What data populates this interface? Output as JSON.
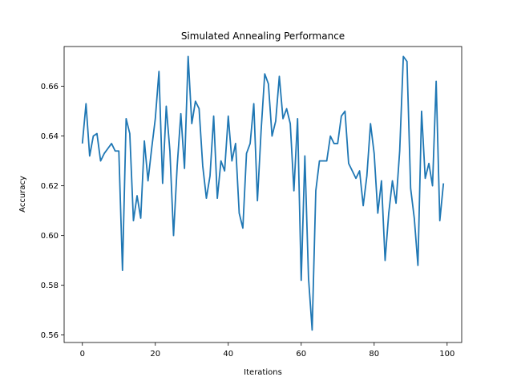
{
  "chart_data": {
    "type": "line",
    "title": "Simulated Annealing Performance",
    "xlabel": "Iterations",
    "ylabel": "Accuracy",
    "xlim": [
      -5,
      104
    ],
    "ylim": [
      0.557,
      0.676
    ],
    "xticks": [
      0,
      20,
      40,
      60,
      80,
      100
    ],
    "yticks": [
      0.56,
      0.58,
      0.6,
      0.62,
      0.64,
      0.66
    ],
    "grid": false,
    "legend": "none",
    "series": [
      {
        "color": "#1f77b4",
        "x": [
          0,
          1,
          2,
          3,
          4,
          5,
          6,
          7,
          8,
          9,
          10,
          11,
          12,
          13,
          14,
          15,
          16,
          17,
          18,
          19,
          20,
          21,
          22,
          23,
          24,
          25,
          26,
          27,
          28,
          29,
          30,
          31,
          32,
          33,
          34,
          35,
          36,
          37,
          38,
          39,
          40,
          41,
          42,
          43,
          44,
          45,
          46,
          47,
          48,
          49,
          50,
          51,
          52,
          53,
          54,
          55,
          56,
          57,
          58,
          59,
          60,
          61,
          62,
          63,
          64,
          65,
          66,
          67,
          68,
          69,
          70,
          71,
          72,
          73,
          74,
          75,
          76,
          77,
          78,
          79,
          80,
          81,
          82,
          83,
          84,
          85,
          86,
          87,
          88,
          89,
          90,
          91,
          92,
          93,
          94,
          95,
          96,
          97,
          98,
          99
        ],
        "values": [
          0.637,
          0.653,
          0.632,
          0.64,
          0.641,
          0.63,
          0.633,
          0.635,
          0.637,
          0.634,
          0.634,
          0.586,
          0.647,
          0.641,
          0.606,
          0.616,
          0.607,
          0.638,
          0.622,
          0.635,
          0.647,
          0.666,
          0.621,
          0.652,
          0.634,
          0.6,
          0.628,
          0.649,
          0.627,
          0.672,
          0.645,
          0.654,
          0.651,
          0.628,
          0.615,
          0.624,
          0.648,
          0.615,
          0.63,
          0.626,
          0.648,
          0.63,
          0.637,
          0.609,
          0.603,
          0.633,
          0.637,
          0.653,
          0.614,
          0.642,
          0.665,
          0.661,
          0.64,
          0.646,
          0.664,
          0.647,
          0.651,
          0.645,
          0.618,
          0.647,
          0.582,
          0.632,
          0.583,
          0.562,
          0.618,
          0.63,
          0.63,
          0.63,
          0.64,
          0.637,
          0.637,
          0.648,
          0.65,
          0.629,
          0.626,
          0.623,
          0.626,
          0.612,
          0.624,
          0.645,
          0.633,
          0.609,
          0.622,
          0.59,
          0.609,
          0.622,
          0.613,
          0.634,
          0.672,
          0.67,
          0.619,
          0.607,
          0.588,
          0.65,
          0.623,
          0.629,
          0.62,
          0.662,
          0.606,
          0.621
        ]
      }
    ]
  }
}
